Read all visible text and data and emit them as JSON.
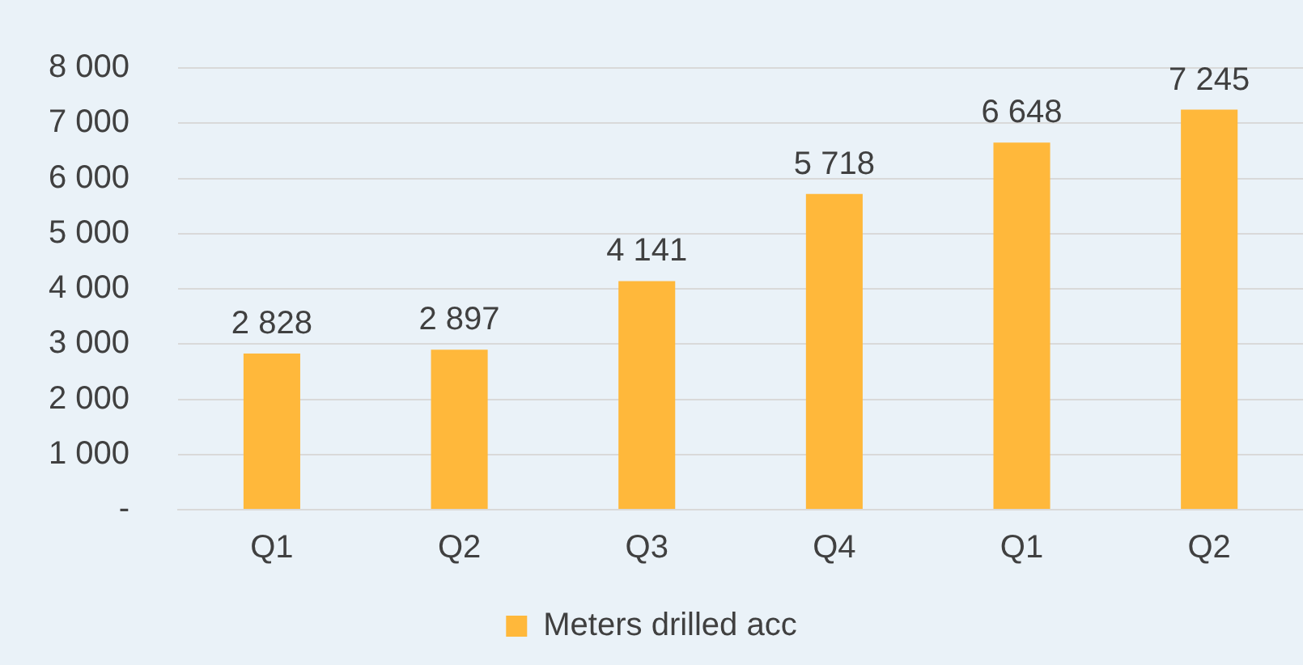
{
  "chart_data": {
    "type": "bar",
    "categories": [
      "Q1",
      "Q2",
      "Q3",
      "Q4",
      "Q1",
      "Q2"
    ],
    "series": [
      {
        "name": "Meters drilled acc",
        "color": "#ffb83b",
        "values": [
          2828,
          2897,
          4141,
          5718,
          6648,
          7245
        ],
        "value_labels": [
          "2 828",
          "2 897",
          "4 141",
          "5 718",
          "6 648",
          "7 245"
        ]
      }
    ],
    "ylim": [
      0,
      8000
    ],
    "yticks": [
      {
        "value": 0,
        "label": "-"
      },
      {
        "value": 1000,
        "label": "1 000"
      },
      {
        "value": 2000,
        "label": "2 000"
      },
      {
        "value": 3000,
        "label": "3 000"
      },
      {
        "value": 4000,
        "label": "4 000"
      },
      {
        "value": 5000,
        "label": "5 000"
      },
      {
        "value": 6000,
        "label": "6 000"
      },
      {
        "value": 7000,
        "label": "7 000"
      },
      {
        "value": 8000,
        "label": "8 000"
      }
    ],
    "grid": "y",
    "legend": "bottom"
  }
}
